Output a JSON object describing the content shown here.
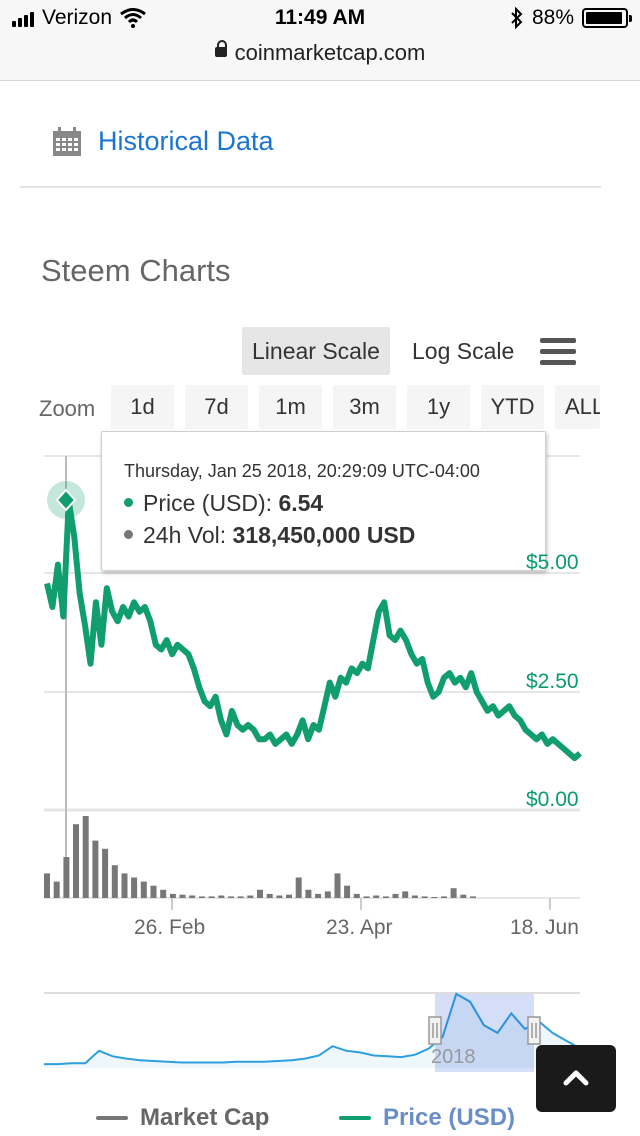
{
  "status": {
    "carrier": "Verizon",
    "time": "11:49 AM",
    "battery": "88%",
    "battery_level": 0.88,
    "url": "coinmarketcap.com"
  },
  "historical": {
    "label": "Historical Data"
  },
  "chart_title": "Steem Charts",
  "scale": {
    "linear": "Linear Scale",
    "log": "Log Scale",
    "active": "linear"
  },
  "zoom": {
    "label": "Zoom",
    "options": [
      "1d",
      "7d",
      "1m",
      "3m",
      "1y",
      "YTD",
      "ALL"
    ]
  },
  "tooltip": {
    "date": "Thursday, Jan 25 2018, 20:29:09 UTC-04:00",
    "price_label": "Price (USD): ",
    "price_value": "6.54",
    "vol_label": "24h Vol: ",
    "vol_value": "318,450,000 USD"
  },
  "colors": {
    "price": "#119e6e",
    "marketcap": "#777777",
    "link": "#1a75d2",
    "navigator": "#2c9fde"
  },
  "chart_data": {
    "type": "line",
    "y_tick_labels": [
      "$5.00",
      "$2.50",
      "$0.00"
    ],
    "ylim": [
      0,
      7
    ],
    "x_tick_labels": [
      "26. Feb",
      "23. Apr",
      "18. Jun"
    ],
    "navigator_label": "2018",
    "series": [
      {
        "name": "Price (USD)",
        "values": [
          4.8,
          4.3,
          5.2,
          4.1,
          6.54,
          5.8,
          4.6,
          3.9,
          3.1,
          4.4,
          3.5,
          4.7,
          4.2,
          4.0,
          4.3,
          4.1,
          4.4,
          4.2,
          4.3,
          4.0,
          3.5,
          3.4,
          3.6,
          3.3,
          3.5,
          3.4,
          3.3,
          3.0,
          2.6,
          2.3,
          2.2,
          2.4,
          1.9,
          1.6,
          2.1,
          1.8,
          1.7,
          1.8,
          1.7,
          1.5,
          1.5,
          1.6,
          1.4,
          1.5,
          1.6,
          1.4,
          1.6,
          1.9,
          1.5,
          1.8,
          1.7,
          2.2,
          2.7,
          2.4,
          2.8,
          2.7,
          3.0,
          2.9,
          3.1,
          3.0,
          3.6,
          4.2,
          4.4,
          3.7,
          3.6,
          3.8,
          3.6,
          3.3,
          3.1,
          3.2,
          2.7,
          2.4,
          2.5,
          2.8,
          2.9,
          2.7,
          2.8,
          2.6,
          2.9,
          2.5,
          2.3,
          2.1,
          2.2,
          2.0,
          2.1,
          2.2,
          2.0,
          1.9,
          1.7,
          1.6,
          1.5,
          1.6,
          1.4,
          1.5,
          1.4,
          1.3,
          1.2,
          1.1,
          1.2
        ]
      },
      {
        "name": "Market Cap",
        "values": [
          0.3,
          0.2,
          0.5,
          0.9,
          1.0,
          0.7,
          0.6,
          0.4,
          0.3,
          0.25,
          0.2,
          0.15,
          0.1,
          0.05,
          0.04,
          0.03,
          0.02,
          0.02,
          0.03,
          0.02,
          0.02,
          0.03,
          0.1,
          0.05,
          0.03,
          0.04,
          0.25,
          0.1,
          0.05,
          0.08,
          0.3,
          0.15,
          0.05,
          0.02,
          0.03,
          0.02,
          0.05,
          0.08,
          0.03,
          0.02,
          0.01,
          0.02,
          0.12,
          0.04,
          0.02
        ]
      }
    ]
  },
  "legend": {
    "marketcap": "Market Cap",
    "price": "Price (USD)"
  }
}
